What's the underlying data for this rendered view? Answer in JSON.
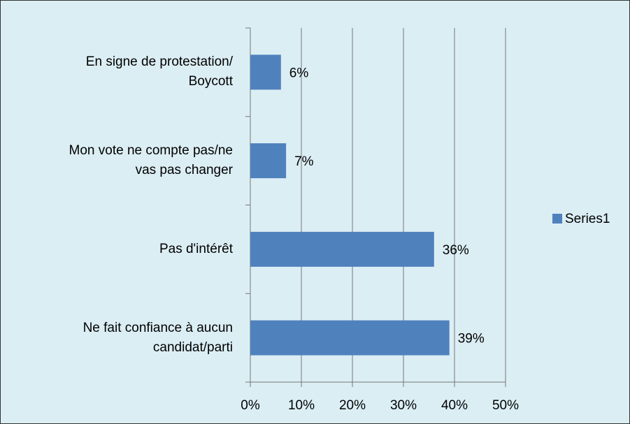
{
  "chart_data": {
    "type": "bar",
    "orientation": "horizontal",
    "categories": [
      "En signe de protestation/\nBoycott",
      "Mon vote ne compte pas/ne\nvas pas changer",
      "Pas d'intérêt",
      "Ne fait confiance à aucun\ncandidat/parti"
    ],
    "series": [
      {
        "name": "Series1",
        "color": "#4f81bd",
        "values": [
          6,
          7,
          36,
          39
        ],
        "value_labels": [
          "6%",
          "7%",
          "36%",
          "39%"
        ]
      }
    ],
    "xlim": [
      0,
      50
    ],
    "xticks": [
      {
        "value": 0,
        "label": "0%"
      },
      {
        "value": 10,
        "label": "10%"
      },
      {
        "value": 20,
        "label": "20%"
      },
      {
        "value": 30,
        "label": "30%"
      },
      {
        "value": 40,
        "label": "40%"
      },
      {
        "value": 50,
        "label": "50%"
      }
    ],
    "grid": true,
    "legend": "right"
  }
}
